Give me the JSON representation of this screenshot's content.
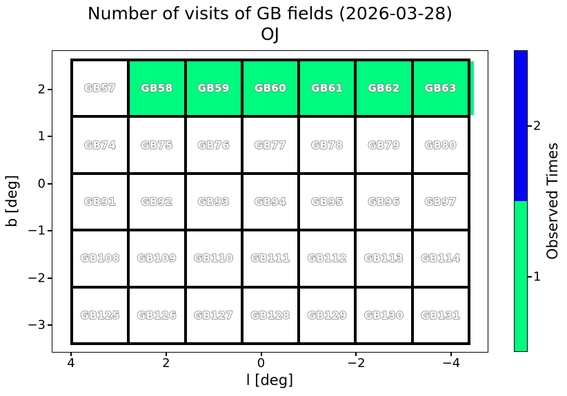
{
  "chart_data": {
    "type": "heatmap",
    "title": "Number of visits of GB fields (2026-03-28)",
    "subtitle": "OJ",
    "xlabel": "l [deg]",
    "ylabel": "b [deg]",
    "x_tick_labels": [
      "4",
      "2",
      "0",
      "−2",
      "−4"
    ],
    "y_tick_labels": [
      "2",
      "1",
      "0",
      "−1",
      "−2",
      "−3"
    ],
    "x_axis_inverted": true,
    "x_range": [
      4.4,
      -4.8
    ],
    "y_range": [
      -3.4,
      2.6
    ],
    "grid_rows": [
      {
        "fields": [
          "GB57",
          "GB58",
          "GB59",
          "GB60",
          "GB61",
          "GB62",
          "GB63"
        ],
        "observed": [
          0,
          1,
          1,
          1,
          1,
          1,
          1
        ]
      },
      {
        "fields": [
          "GB74",
          "GB75",
          "GB76",
          "GB77",
          "GB78",
          "GB79",
          "GB80"
        ],
        "observed": [
          0,
          0,
          0,
          0,
          0,
          0,
          0
        ]
      },
      {
        "fields": [
          "GB91",
          "GB92",
          "GB93",
          "GB94",
          "GB95",
          "GB96",
          "GB97"
        ],
        "observed": [
          0,
          0,
          0,
          0,
          0,
          0,
          0
        ]
      },
      {
        "fields": [
          "GB108",
          "GB109",
          "GB110",
          "GB111",
          "GB112",
          "GB113",
          "GB114"
        ],
        "observed": [
          0,
          0,
          0,
          0,
          0,
          0,
          0
        ]
      },
      {
        "fields": [
          "GB125",
          "GB126",
          "GB127",
          "GB128",
          "GB129",
          "GB130",
          "GB131"
        ],
        "observed": [
          0,
          0,
          0,
          0,
          0,
          0,
          0
        ]
      }
    ],
    "value_colors": {
      "0": "#ffffff",
      "1": "#00fa7f",
      "2": "#0404f5"
    },
    "colorbar": {
      "label": "Observed Times",
      "segments": [
        {
          "value": "2",
          "color": "#0404f5"
        },
        {
          "value": "1",
          "color": "#00fa7f"
        }
      ]
    }
  }
}
